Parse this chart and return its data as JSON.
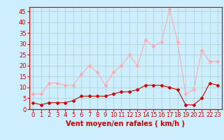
{
  "title": "",
  "xlabel": "Vent moyen/en rafales ( km/h )",
  "background_color": "#cceeff",
  "grid_color": "#aacccc",
  "xlim": [
    -0.5,
    23.5
  ],
  "ylim": [
    0,
    47
  ],
  "yticks": [
    0,
    5,
    10,
    15,
    20,
    25,
    30,
    35,
    40,
    45
  ],
  "xticks": [
    0,
    1,
    2,
    3,
    4,
    5,
    6,
    7,
    8,
    9,
    10,
    11,
    12,
    13,
    14,
    15,
    16,
    17,
    18,
    19,
    20,
    21,
    22,
    23
  ],
  "hours": [
    0,
    1,
    2,
    3,
    4,
    5,
    6,
    7,
    8,
    9,
    10,
    11,
    12,
    13,
    14,
    15,
    16,
    17,
    18,
    19,
    20,
    21,
    22,
    23
  ],
  "wind_avg": [
    3,
    2,
    3,
    3,
    3,
    4,
    6,
    6,
    6,
    6,
    7,
    8,
    8,
    9,
    11,
    11,
    11,
    10,
    9,
    2,
    2,
    5,
    12,
    11
  ],
  "wind_gust": [
    7,
    7,
    12,
    12,
    11,
    11,
    16,
    20,
    17,
    11,
    17,
    20,
    25,
    20,
    32,
    29,
    31,
    46,
    31,
    7,
    9,
    27,
    22,
    22
  ],
  "avg_color": "#cc0000",
  "gust_color": "#ffaaaa",
  "line_width": 0.8,
  "marker_size": 2,
  "xlabel_fontsize": 7,
  "tick_fontsize": 6
}
